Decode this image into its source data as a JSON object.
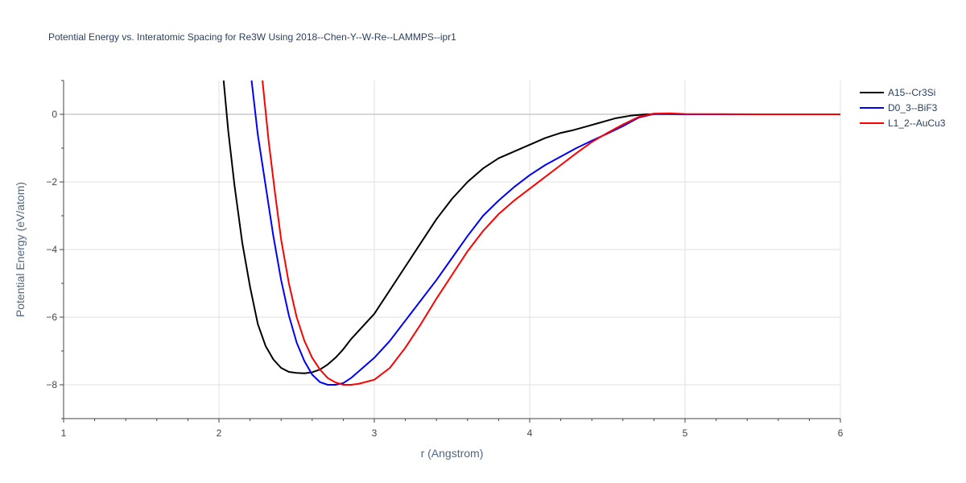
{
  "chart_data": {
    "type": "line",
    "title": "Potential Energy vs. Interatomic Spacing for Re3W Using 2018--Chen-Y--W-Re--LAMMPS--ipr1",
    "xlabel": "r (Angstrom)",
    "ylabel": "Potential Energy (eV/atom)",
    "xlim": [
      1,
      6
    ],
    "ylim": [
      -9,
      1
    ],
    "xticks": [
      1,
      2,
      3,
      4,
      5,
      6
    ],
    "yticks": [
      0,
      -2,
      -4,
      -6,
      -8
    ],
    "ytick_labels": [
      "0",
      "−2",
      "−4",
      "−6",
      "−8"
    ],
    "grid": true,
    "legend_position": "top-right",
    "series": [
      {
        "name": "A15--Cr3Si",
        "color": "#000000",
        "x": [
          2.03,
          2.06,
          2.1,
          2.15,
          2.2,
          2.25,
          2.3,
          2.35,
          2.4,
          2.45,
          2.5,
          2.55,
          2.6,
          2.65,
          2.7,
          2.75,
          2.8,
          2.85,
          2.9,
          3.0,
          3.1,
          3.2,
          3.3,
          3.4,
          3.5,
          3.6,
          3.7,
          3.8,
          3.9,
          4.0,
          4.1,
          4.2,
          4.27,
          4.35,
          4.45,
          4.55,
          4.65,
          4.75,
          4.85,
          5.0,
          5.5,
          6.0
        ],
        "y": [
          1.0,
          -0.5,
          -2.1,
          -3.8,
          -5.1,
          -6.2,
          -6.85,
          -7.25,
          -7.5,
          -7.62,
          -7.65,
          -7.66,
          -7.63,
          -7.55,
          -7.4,
          -7.2,
          -6.95,
          -6.65,
          -6.4,
          -5.9,
          -5.2,
          -4.5,
          -3.8,
          -3.1,
          -2.5,
          -2.0,
          -1.6,
          -1.3,
          -1.1,
          -0.9,
          -0.7,
          -0.55,
          -0.48,
          -0.38,
          -0.25,
          -0.12,
          -0.04,
          0.0,
          0.01,
          0.0,
          0.0,
          0.0
        ]
      },
      {
        "name": "D0_3--BiF3",
        "color": "#0000ff",
        "x": [
          2.21,
          2.25,
          2.3,
          2.35,
          2.4,
          2.45,
          2.5,
          2.55,
          2.6,
          2.65,
          2.7,
          2.75,
          2.8,
          2.85,
          2.9,
          3.0,
          3.1,
          3.2,
          3.3,
          3.4,
          3.5,
          3.6,
          3.7,
          3.8,
          3.9,
          4.0,
          4.1,
          4.2,
          4.3,
          4.4,
          4.5,
          4.6,
          4.7,
          4.8,
          4.9,
          5.0,
          5.5,
          6.0
        ],
        "y": [
          1.0,
          -0.6,
          -2.1,
          -3.6,
          -4.9,
          -5.95,
          -6.75,
          -7.3,
          -7.7,
          -7.92,
          -8.0,
          -8.0,
          -7.95,
          -7.8,
          -7.6,
          -7.2,
          -6.7,
          -6.1,
          -5.5,
          -4.9,
          -4.25,
          -3.6,
          -3.0,
          -2.55,
          -2.15,
          -1.8,
          -1.5,
          -1.25,
          -1.0,
          -0.78,
          -0.57,
          -0.35,
          -0.1,
          0.01,
          0.02,
          0.0,
          0.0,
          0.0
        ]
      },
      {
        "name": "L1_2--AuCu3",
        "color": "#ff0000",
        "x": [
          2.28,
          2.32,
          2.36,
          2.4,
          2.45,
          2.5,
          2.55,
          2.6,
          2.65,
          2.7,
          2.75,
          2.8,
          2.85,
          2.9,
          3.0,
          3.1,
          3.2,
          3.3,
          3.4,
          3.5,
          3.6,
          3.7,
          3.8,
          3.9,
          4.0,
          4.1,
          4.2,
          4.3,
          4.4,
          4.5,
          4.6,
          4.7,
          4.8,
          4.9,
          5.0,
          5.5,
          6.0
        ],
        "y": [
          1.0,
          -0.8,
          -2.3,
          -3.7,
          -5.0,
          -6.0,
          -6.7,
          -7.2,
          -7.55,
          -7.8,
          -7.93,
          -8.0,
          -8.0,
          -7.97,
          -7.85,
          -7.5,
          -6.9,
          -6.2,
          -5.45,
          -4.75,
          -4.05,
          -3.45,
          -2.95,
          -2.55,
          -2.2,
          -1.85,
          -1.5,
          -1.15,
          -0.82,
          -0.55,
          -0.3,
          -0.08,
          0.02,
          0.03,
          0.01,
          0.0,
          0.0
        ]
      }
    ]
  }
}
